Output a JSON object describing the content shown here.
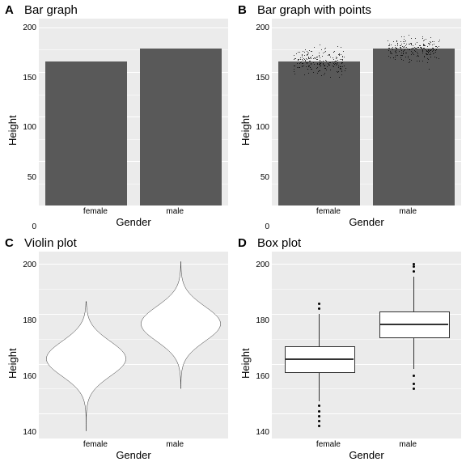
{
  "layout": {
    "cols": 2,
    "rows": 2,
    "panel_bg": "#ebebeb",
    "grid_color": "#ffffff",
    "bar_color": "#595959"
  },
  "panels": {
    "A": {
      "letter": "A",
      "title": "Bar graph",
      "xlab": "Gender",
      "ylab": "Height",
      "type": "bar",
      "ylim": [
        0,
        210
      ],
      "yticks": [
        0,
        50,
        100,
        150,
        200
      ],
      "categories": [
        "female",
        "male"
      ],
      "values": [
        162,
        176
      ]
    },
    "B": {
      "letter": "B",
      "title": "Bar graph with points",
      "xlab": "Gender",
      "ylab": "Height",
      "type": "bar_points",
      "ylim": [
        0,
        210
      ],
      "yticks": [
        0,
        50,
        100,
        150,
        200
      ],
      "categories": [
        "female",
        "male"
      ],
      "values": [
        162,
        176
      ],
      "jitter": {
        "female": {
          "mean": 162,
          "sd": 7,
          "min": 135,
          "max": 185
        },
        "male": {
          "mean": 176,
          "sd": 7,
          "min": 150,
          "max": 200
        }
      },
      "n_points": 220
    },
    "C": {
      "letter": "C",
      "title": "Violin plot",
      "xlab": "Gender",
      "ylab": "Height",
      "type": "violin",
      "ylim": [
        130,
        205
      ],
      "yticks": [
        140,
        160,
        180,
        200
      ],
      "categories": [
        "female",
        "male"
      ],
      "dist": {
        "female": {
          "mean": 162,
          "sd": 7,
          "min": 133,
          "max": 185
        },
        "male": {
          "mean": 176,
          "sd": 7,
          "min": 150,
          "max": 201
        }
      }
    },
    "D": {
      "letter": "D",
      "title": "Box plot",
      "xlab": "Gender",
      "ylab": "Height",
      "type": "box",
      "ylim": [
        130,
        205
      ],
      "yticks": [
        140,
        160,
        180,
        200
      ],
      "categories": [
        "female",
        "male"
      ],
      "boxes": {
        "female": {
          "q1": 157,
          "median": 162,
          "q3": 167,
          "wlo": 145,
          "whi": 180,
          "outliers": [
            143,
            141,
            139,
            137,
            135,
            182,
            184
          ]
        },
        "male": {
          "q1": 171,
          "median": 176,
          "q3": 181,
          "wlo": 158,
          "whi": 195,
          "outliers": [
            155,
            152,
            150,
            197,
            199,
            200
          ]
        }
      }
    }
  }
}
